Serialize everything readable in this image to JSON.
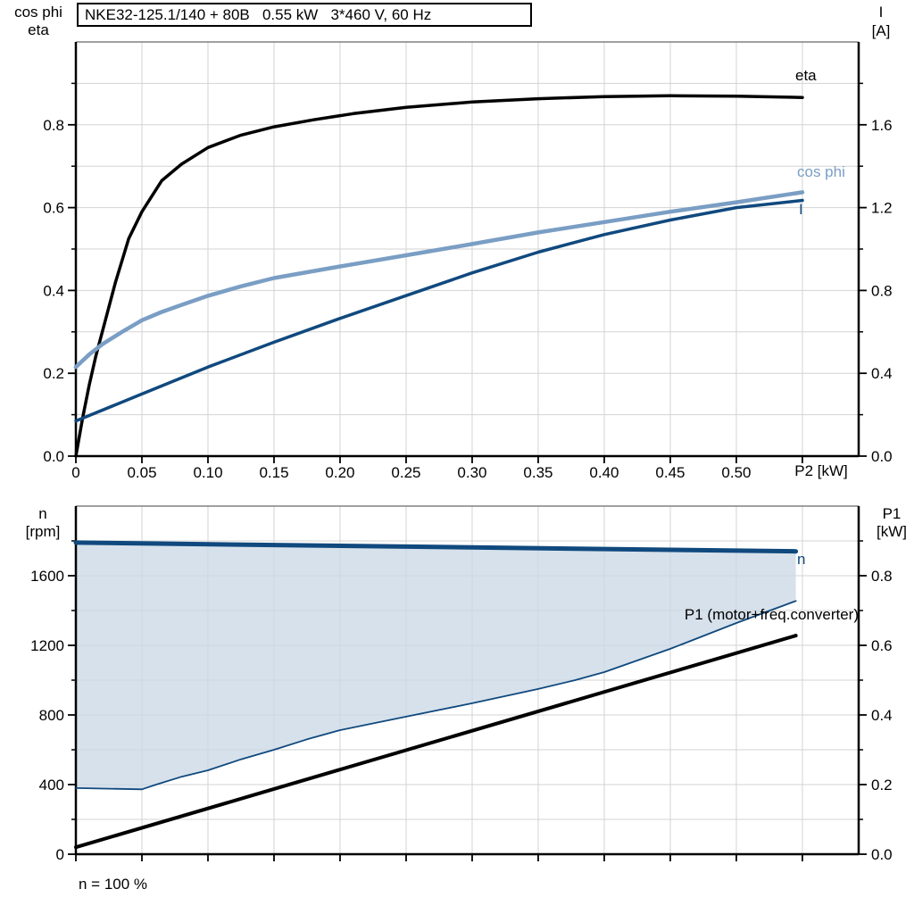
{
  "title_box": {
    "text": "NKE32-125.1/140 + 80B   0.55 kW   3*460 V, 60 Hz"
  },
  "footnote": "n = 100 %",
  "colors": {
    "black": "#000000",
    "light_blue": "#7A9EC4",
    "navy": "#10497E",
    "area_fill": "#CBD9E6",
    "grid": "#D3D3D3",
    "frame": "#808080"
  },
  "top_chart": {
    "left_axis_title_line1": "cos phi",
    "left_axis_title_line2": "eta",
    "right_axis_title_line1": "I",
    "right_axis_title_line2": "[A]",
    "x_axis_title": "P2 [kW]",
    "curve_labels": {
      "eta": "eta",
      "cos_phi": "cos phi",
      "current": "I"
    }
  },
  "bottom_chart": {
    "left_axis_title_line1": "n",
    "left_axis_title_line2": "[rpm]",
    "right_axis_title_line1": "P1",
    "right_axis_title_line2": "[kW]",
    "curve_labels": {
      "n": "n",
      "p1": "P1 (motor+freq.converter)"
    }
  },
  "chart_data": [
    {
      "type": "line",
      "title": "NKE32-125.1/140 + 80B  0.55 kW  3*460 V, 60 Hz",
      "xlabel": "P2 [kW]",
      "ylabel_left": "cos phi, eta",
      "ylabel_right": "I [A]",
      "xlim": [
        0,
        0.593
      ],
      "ylim_left": [
        0,
        1.0
      ],
      "ylim_right": [
        0,
        2.0
      ],
      "grid": true,
      "x_tick_values": [
        0,
        0.05,
        0.1,
        0.15,
        0.2,
        0.25,
        0.3,
        0.35,
        0.4,
        0.45,
        0.5
      ],
      "x_tick_labels": [
        "0",
        "0.05",
        "0.10",
        "0.15",
        "0.20",
        "0.25",
        "0.30",
        "0.35",
        "0.40",
        "0.45",
        "0.50"
      ],
      "y_left_tick_values": [
        0,
        0.2,
        0.4,
        0.6,
        0.8
      ],
      "y_left_tick_labels": [
        "0.0",
        "0.2",
        "0.4",
        "0.6",
        "0.8"
      ],
      "y_left_minor_tick_values": [
        0.1,
        0.3,
        0.5,
        0.7,
        0.9
      ],
      "y_right_tick_values": [
        0,
        0.4,
        0.8,
        1.2,
        1.6
      ],
      "y_right_tick_labels": [
        "0.0",
        "0.4",
        "0.8",
        "1.2",
        "1.6"
      ],
      "y_right_minor_tick_values": [
        0.2,
        0.6,
        1.0,
        1.4,
        1.8
      ],
      "grid_x": [
        0.05,
        0.1,
        0.15,
        0.2,
        0.25,
        0.3,
        0.35,
        0.4,
        0.45,
        0.5,
        0.55
      ],
      "grid_y_left": [
        0.1,
        0.2,
        0.3,
        0.4,
        0.5,
        0.6,
        0.7,
        0.8,
        0.9
      ],
      "series": [
        {
          "name": "eta",
          "axis": "left",
          "color_key": "black",
          "width": 3.5,
          "x": [
            0,
            0.005,
            0.01,
            0.015,
            0.02,
            0.03,
            0.04,
            0.05,
            0.065,
            0.08,
            0.1,
            0.125,
            0.15,
            0.18,
            0.21,
            0.25,
            0.3,
            0.35,
            0.4,
            0.45,
            0.5,
            0.55
          ],
          "y": [
            0,
            0.09,
            0.17,
            0.24,
            0.3,
            0.42,
            0.525,
            0.59,
            0.665,
            0.705,
            0.745,
            0.775,
            0.795,
            0.812,
            0.827,
            0.842,
            0.855,
            0.863,
            0.868,
            0.87,
            0.869,
            0.866
          ]
        },
        {
          "name": "cos phi",
          "axis": "left",
          "color_key": "light_blue",
          "width": 4.5,
          "x": [
            0,
            0.01,
            0.02,
            0.035,
            0.05,
            0.065,
            0.08,
            0.1,
            0.125,
            0.15,
            0.2,
            0.25,
            0.3,
            0.35,
            0.4,
            0.45,
            0.5,
            0.55
          ],
          "y": [
            0.215,
            0.245,
            0.27,
            0.3,
            0.328,
            0.348,
            0.365,
            0.387,
            0.41,
            0.43,
            0.458,
            0.485,
            0.512,
            0.54,
            0.565,
            0.59,
            0.613,
            0.637
          ]
        },
        {
          "name": "I",
          "axis": "right",
          "color_key": "navy",
          "width": 3.5,
          "x": [
            0,
            0.05,
            0.1,
            0.15,
            0.2,
            0.25,
            0.3,
            0.35,
            0.4,
            0.45,
            0.5,
            0.55
          ],
          "y": [
            0.17,
            0.3,
            0.43,
            0.55,
            0.665,
            0.775,
            0.885,
            0.985,
            1.07,
            1.14,
            1.2,
            1.235
          ]
        }
      ]
    },
    {
      "type": "line+area",
      "xlabel": "P2 [kW]",
      "ylabel_left": "n [rpm]",
      "ylabel_right": "P1 [kW]",
      "xlim": [
        0,
        0.593
      ],
      "ylim_left": [
        0,
        2000
      ],
      "ylim_right": [
        0,
        1.0
      ],
      "grid": true,
      "annotation": "n = 100 %",
      "x_tick_values": [],
      "x_tick_labels": [],
      "y_left_tick_values": [
        0,
        400,
        800,
        1200,
        1600
      ],
      "y_left_tick_labels": [
        "0",
        "400",
        "800",
        "1200",
        "1600"
      ],
      "y_left_minor_tick_values": [
        200,
        600,
        1000,
        1400,
        1800
      ],
      "y_right_tick_values": [
        0,
        0.2,
        0.4,
        0.6,
        0.8
      ],
      "y_right_tick_labels": [
        "0.0",
        "0.2",
        "0.4",
        "0.6",
        "0.8"
      ],
      "y_right_minor_tick_values": [
        0.1,
        0.3,
        0.5,
        0.7,
        0.9
      ],
      "grid_x": [
        0.05,
        0.1,
        0.15,
        0.2,
        0.25,
        0.3,
        0.35,
        0.4,
        0.45,
        0.5,
        0.55
      ],
      "grid_y_left": [
        200,
        400,
        600,
        800,
        1000,
        1200,
        1400,
        1600,
        1800
      ],
      "area": {
        "upper_series": "n",
        "lower_series": "n min",
        "fill_key": "area_fill",
        "opacity": 0.78
      },
      "series": [
        {
          "name": "n",
          "axis": "left",
          "color_key": "navy",
          "width": 5,
          "x": [
            0,
            0.545
          ],
          "y": [
            1790,
            1740
          ]
        },
        {
          "name": "n min",
          "axis": "left",
          "color_key": "navy",
          "width": 1.8,
          "x": [
            0,
            0.05,
            0.06,
            0.08,
            0.1,
            0.125,
            0.15,
            0.175,
            0.2,
            0.25,
            0.3,
            0.35,
            0.378,
            0.4,
            0.45,
            0.5,
            0.545
          ],
          "y": [
            380,
            373,
            398,
            445,
            482,
            545,
            600,
            660,
            713,
            790,
            867,
            949,
            1000,
            1046,
            1180,
            1328,
            1455
          ]
        },
        {
          "name": "P1",
          "axis": "right",
          "color_key": "black",
          "width": 4,
          "x": [
            0,
            0.545
          ],
          "y": [
            0.02,
            0.628
          ]
        }
      ]
    }
  ]
}
